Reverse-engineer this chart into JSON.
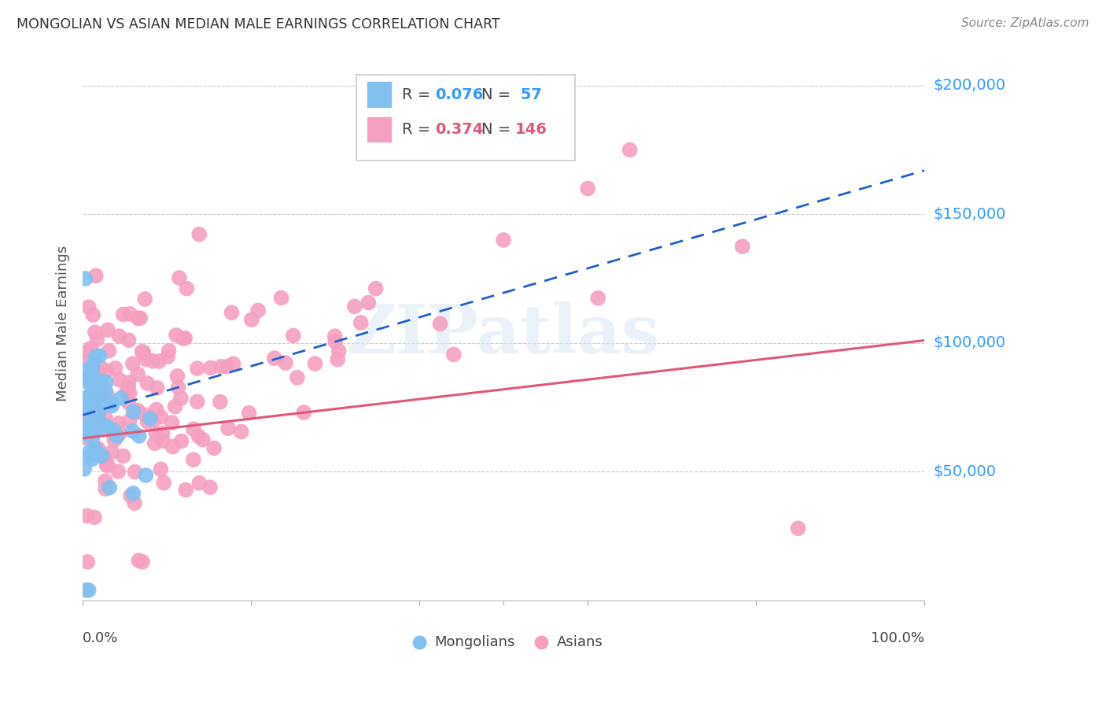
{
  "title": "MONGOLIAN VS ASIAN MEDIAN MALE EARNINGS CORRELATION CHART",
  "source": "Source: ZipAtlas.com",
  "ylabel": "Median Male Earnings",
  "ytick_labels": [
    "$50,000",
    "$100,000",
    "$150,000",
    "$200,000"
  ],
  "ytick_values": [
    50000,
    100000,
    150000,
    200000
  ],
  "ymin": 0,
  "ymax": 215000,
  "xmin": 0.0,
  "xmax": 1.0,
  "mongolian_color": "#82C0F0",
  "asian_color": "#F5A0C0",
  "mongolian_line_color": "#2060CC",
  "asian_line_color": "#E05878",
  "mongolian_R": 0.076,
  "mongolian_N": 57,
  "asian_R": 0.374,
  "asian_N": 146,
  "watermark": "ZIPatlas",
  "background_color": "#ffffff",
  "grid_color": "#cccccc"
}
